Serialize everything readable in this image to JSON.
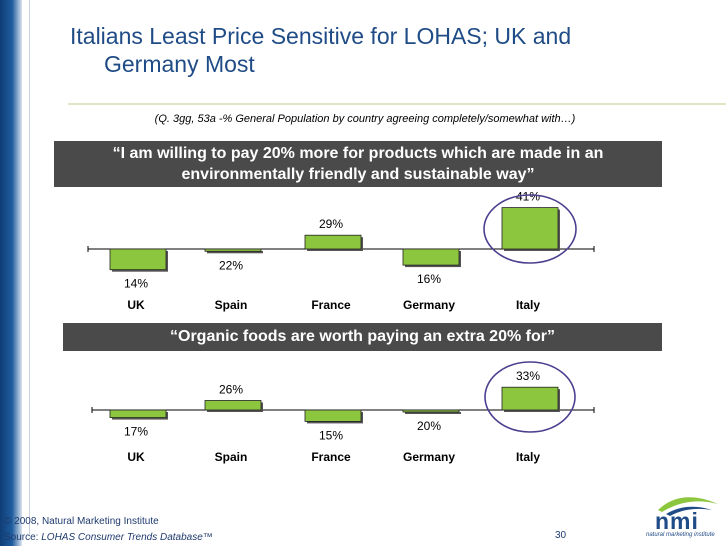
{
  "title_line1": "Italians Least Price Sensitive for LOHAS; UK and",
  "title_line2": "Germany Most",
  "subtitle": "(Q. 3gg, 53a  -% General Population by country agreeing completely/somewhat with…)",
  "chart_data": [
    {
      "type": "bar",
      "title": "“I am willing to pay 20% more for products which are made in an environmentally friendly and sustainable way”",
      "categories": [
        "UK",
        "Spain",
        "France",
        "Germany",
        "Italy"
      ],
      "values": [
        14,
        22,
        29,
        16,
        41
      ],
      "labels": [
        "14%",
        "22%",
        "29%",
        "16%",
        "41%"
      ],
      "baseline": 23,
      "highlight": "Italy"
    },
    {
      "type": "bar",
      "title": "“Organic foods are worth paying an extra 20% for”",
      "categories": [
        "UK",
        "Spain",
        "France",
        "Germany",
        "Italy"
      ],
      "values": [
        17,
        26,
        15,
        20,
        33
      ],
      "labels": [
        "17%",
        "26%",
        "15%",
        "20%",
        "33%"
      ],
      "baseline": 21,
      "highlight": "Italy"
    }
  ],
  "footer": {
    "copyright": "© 2008, Natural Marketing Institute",
    "source_prefix": "Source: ",
    "source_name": "LOHAS Consumer Trends Database™",
    "page": "30"
  },
  "logo": {
    "text": "nmi",
    "tagline": "natural marketing institute"
  },
  "colors": {
    "bar": "#8cc63f",
    "circle": "#4b3f8f",
    "title": "#1f4b86",
    "banner": "#4a4a4a"
  }
}
